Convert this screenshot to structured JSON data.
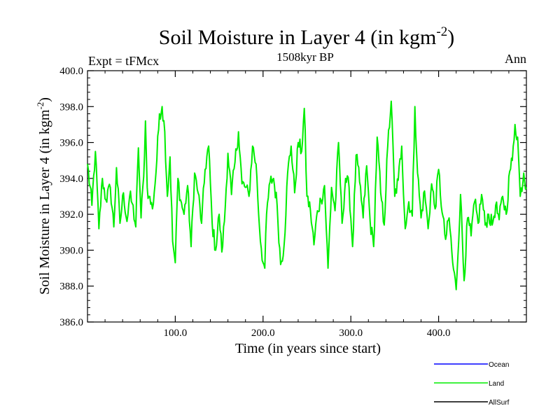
{
  "chart_data": {
    "type": "line",
    "title": "Soil Moisture in Layer 4 (in kgm",
    "title_sup": "-2",
    "title_close": ")",
    "subtitle": "1508kyr BP",
    "left_label": "Expt = tFMcx",
    "right_label": "Ann",
    "xlabel": "Time (in years since start)",
    "ylabel": "Soil Moisture in Layer 4 (in kgm",
    "ylabel_sup": "-2",
    "ylabel_close": ")",
    "xlim": [
      0,
      500
    ],
    "ylim": [
      386.0,
      400.0
    ],
    "x_ticks": [
      100,
      200,
      300,
      400
    ],
    "x_tick_labels": [
      "100.0",
      "200.0",
      "300.0",
      "400.0"
    ],
    "y_ticks": [
      386,
      388,
      390,
      392,
      394,
      396,
      398,
      400
    ],
    "y_tick_labels": [
      "386.0",
      "388.0",
      "390.0",
      "392.0",
      "394.0",
      "396.0",
      "398.0",
      "400.0"
    ],
    "legend": [
      {
        "name": "Ocean",
        "color": "#0000ff"
      },
      {
        "name": "Land",
        "color": "#00ee00"
      },
      {
        "name": "AllSurf",
        "color": "#000000"
      }
    ],
    "series": [
      {
        "name": "Land",
        "color": "#00ee00",
        "x": [
          0,
          5,
          9,
          13,
          17,
          21,
          26,
          30,
          33,
          37,
          41,
          45,
          48,
          51,
          55,
          58,
          61,
          64,
          66,
          68,
          70,
          74,
          78,
          82,
          85,
          88,
          91,
          94,
          97,
          100,
          103,
          106,
          110,
          114,
          118,
          122,
          126,
          130,
          134,
          138,
          142,
          146,
          150,
          153,
          156,
          160,
          164,
          168,
          172,
          176,
          180,
          184,
          188,
          192,
          196,
          200,
          202,
          204,
          208,
          212,
          216,
          220,
          224,
          228,
          232,
          236,
          240,
          244,
          247,
          250,
          254,
          258,
          262,
          266,
          270,
          274,
          278,
          282,
          286,
          290,
          294,
          298,
          302,
          306,
          310,
          314,
          318,
          322,
          326,
          330,
          334,
          338,
          342,
          346,
          350,
          354,
          358,
          362,
          366,
          370,
          373,
          376,
          380,
          384,
          388,
          392,
          396,
          400,
          404,
          408,
          412,
          416,
          420,
          425,
          429,
          433,
          437,
          441,
          445,
          449,
          453,
          457,
          461,
          465,
          469,
          473,
          477,
          481,
          484,
          487,
          490,
          493,
          497,
          500
        ],
        "values": [
          394.8,
          392.5,
          395.5,
          391.2,
          394.0,
          392.8,
          393.5,
          391.3,
          394.6,
          391.5,
          393.2,
          391.6,
          393.0,
          392.6,
          391.3,
          395.7,
          391.8,
          394.1,
          397.2,
          393.5,
          393.0,
          392.3,
          394.3,
          397.6,
          398.0,
          396.6,
          393.0,
          395.2,
          390.5,
          389.3,
          394.0,
          392.8,
          392.0,
          393.6,
          390.2,
          394.3,
          393.2,
          391.5,
          394.5,
          395.8,
          391.5,
          390.0,
          392.0,
          389.9,
          391.6,
          395.4,
          393.1,
          394.9,
          396.6,
          393.7,
          393.5,
          393.0,
          395.8,
          394.8,
          391.2,
          389.3,
          389.0,
          392.0,
          393.8,
          394.0,
          392.5,
          389.2,
          390.3,
          394.3,
          395.8,
          393.2,
          396.0,
          395.5,
          397.9,
          393.0,
          392.2,
          390.3,
          392.2,
          392.8,
          393.6,
          389.0,
          393.5,
          392.2,
          396.0,
          391.5,
          394.0,
          393.5,
          390.2,
          395.3,
          393.8,
          391.8,
          394.7,
          391.6,
          390.2,
          396.3,
          393.2,
          391.4,
          395.8,
          398.3,
          393.0,
          393.9,
          395.8,
          391.2,
          392.7,
          391.9,
          398.0,
          394.3,
          391.8,
          393.3,
          391.2,
          393.7,
          392.3,
          394.5,
          392.1,
          390.6,
          391.8,
          389.3,
          387.8,
          393.1,
          388.3,
          391.8,
          390.8,
          392.7,
          391.5,
          393.1,
          391.4,
          392.0,
          391.4,
          392.5,
          391.7,
          393.0,
          392.0,
          394.4,
          395.0,
          397.0,
          396.3,
          393.0,
          394.3,
          393.5
        ]
      }
    ]
  }
}
